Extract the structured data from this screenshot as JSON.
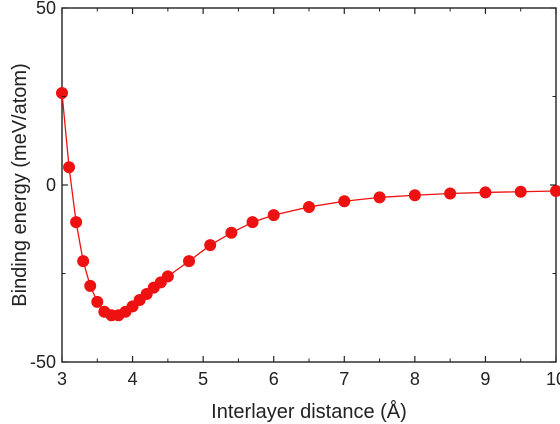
{
  "chart_data": {
    "type": "line",
    "title": "",
    "xlabel": "Interlayer distance (Å)",
    "ylabel": "Binding energy (meV/atom)",
    "xlim": [
      3,
      10
    ],
    "ylim": [
      -50,
      50
    ],
    "xticks": [
      3,
      4,
      5,
      6,
      7,
      8,
      9,
      10
    ],
    "yticks": [
      -50,
      0,
      50
    ],
    "grid": false,
    "legend": "none",
    "colors": {
      "series": "#ee1111",
      "axis": "#222222"
    },
    "series": [
      {
        "marker": "circle",
        "x": [
          3.0,
          3.1,
          3.2,
          3.3,
          3.4,
          3.5,
          3.6,
          3.7,
          3.8,
          3.9,
          4.0,
          4.1,
          4.2,
          4.3,
          4.4,
          4.5,
          4.8,
          5.1,
          5.4,
          5.7,
          6.0,
          6.5,
          7.0,
          7.5,
          8.0,
          8.5,
          9.0,
          9.5,
          10.0
        ],
        "y": [
          26.0,
          5.0,
          -10.5,
          -21.5,
          -28.5,
          -33.0,
          -35.8,
          -36.8,
          -36.8,
          -35.8,
          -34.3,
          -32.5,
          -30.8,
          -29.0,
          -27.5,
          -25.8,
          -21.5,
          -17.0,
          -13.5,
          -10.5,
          -8.5,
          -6.2,
          -4.6,
          -3.5,
          -2.9,
          -2.4,
          -2.1,
          -1.9,
          -1.7
        ]
      }
    ]
  }
}
